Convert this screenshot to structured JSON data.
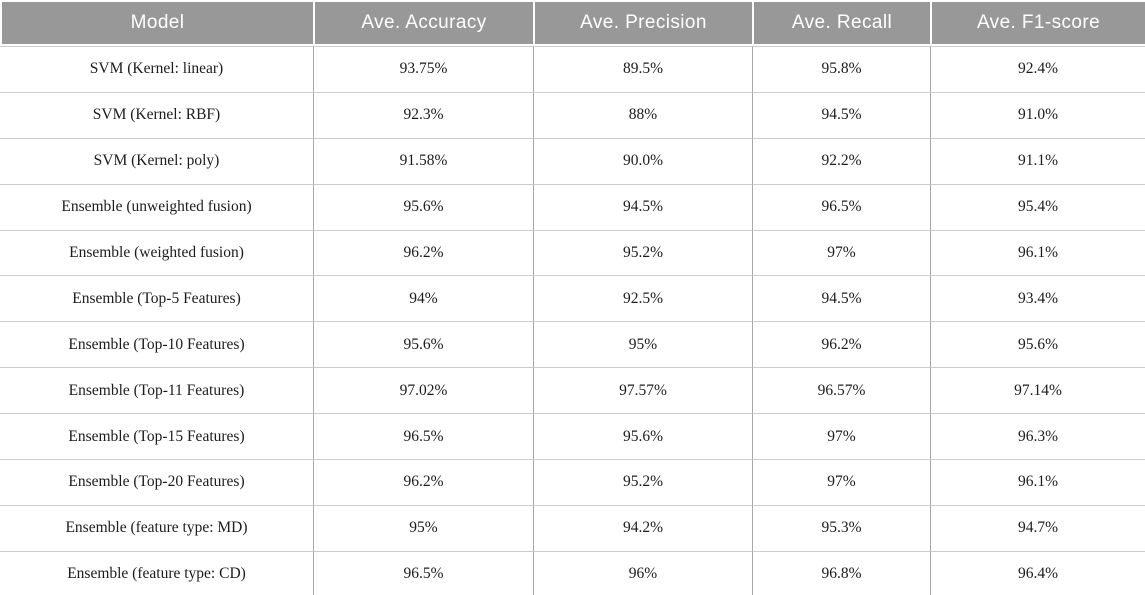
{
  "table": {
    "columns": [
      "Model",
      "Ave. Accuracy",
      "Ave. Precision",
      "Ave. Recall",
      "Ave. F1-score"
    ],
    "rows": [
      [
        "SVM (Kernel: linear)",
        "93.75%",
        "89.5%",
        "95.8%",
        "92.4%"
      ],
      [
        "SVM (Kernel: RBF)",
        "92.3%",
        "88%",
        "94.5%",
        "91.0%"
      ],
      [
        "SVM (Kernel: poly)",
        "91.58%",
        "90.0%",
        "92.2%",
        "91.1%"
      ],
      [
        "Ensemble (unweighted fusion)",
        "95.6%",
        "94.5%",
        "96.5%",
        "95.4%"
      ],
      [
        "Ensemble (weighted fusion)",
        "96.2%",
        "95.2%",
        "97%",
        "96.1%"
      ],
      [
        "Ensemble (Top-5 Features)",
        "94%",
        "92.5%",
        "94.5%",
        "93.4%"
      ],
      [
        "Ensemble (Top-10 Features)",
        "95.6%",
        "95%",
        "96.2%",
        "95.6%"
      ],
      [
        "Ensemble (Top-11 Features)",
        "97.02%",
        "97.57%",
        "96.57%",
        "97.14%"
      ],
      [
        "Ensemble (Top-15 Features)",
        "96.5%",
        "95.6%",
        "97%",
        "96.3%"
      ],
      [
        "Ensemble (Top-20 Features)",
        "96.2%",
        "95.2%",
        "97%",
        "96.1%"
      ],
      [
        "Ensemble (feature type: MD)",
        "95%",
        "94.2%",
        "95.3%",
        "94.7%"
      ],
      [
        "Ensemble (feature type: CD)",
        "96.5%",
        "96%",
        "96.8%",
        "96.4%"
      ]
    ]
  },
  "colors": {
    "header_bg": "#989898",
    "header_text": "#ffffff",
    "body_text": "#1c1c1c",
    "row_divider": "#cbcbcb",
    "column_divider": "#a8a8a8"
  },
  "chart_data": {
    "type": "table",
    "title": "",
    "columns": [
      "Model",
      "Ave. Accuracy",
      "Ave. Precision",
      "Ave. Recall",
      "Ave. F1-score"
    ],
    "rows": [
      {
        "model": "SVM (Kernel: linear)",
        "accuracy": 93.75,
        "precision": 89.5,
        "recall": 95.8,
        "f1_score": 92.4
      },
      {
        "model": "SVM (Kernel: RBF)",
        "accuracy": 92.3,
        "precision": 88,
        "recall": 94.5,
        "f1_score": 91.0
      },
      {
        "model": "SVM (Kernel: poly)",
        "accuracy": 91.58,
        "precision": 90.0,
        "recall": 92.2,
        "f1_score": 91.1
      },
      {
        "model": "Ensemble (unweighted fusion)",
        "accuracy": 95.6,
        "precision": 94.5,
        "recall": 96.5,
        "f1_score": 95.4
      },
      {
        "model": "Ensemble (weighted fusion)",
        "accuracy": 96.2,
        "precision": 95.2,
        "recall": 97,
        "f1_score": 96.1
      },
      {
        "model": "Ensemble (Top-5 Features)",
        "accuracy": 94,
        "precision": 92.5,
        "recall": 94.5,
        "f1_score": 93.4
      },
      {
        "model": "Ensemble (Top-10 Features)",
        "accuracy": 95.6,
        "precision": 95,
        "recall": 96.2,
        "f1_score": 95.6
      },
      {
        "model": "Ensemble (Top-11 Features)",
        "accuracy": 97.02,
        "precision": 97.57,
        "recall": 96.57,
        "f1_score": 97.14
      },
      {
        "model": "Ensemble (Top-15 Features)",
        "accuracy": 96.5,
        "precision": 95.6,
        "recall": 97,
        "f1_score": 96.3
      },
      {
        "model": "Ensemble (Top-20 Features)",
        "accuracy": 96.2,
        "precision": 95.2,
        "recall": 97,
        "f1_score": 96.1
      },
      {
        "model": "Ensemble (feature type: MD)",
        "accuracy": 95,
        "precision": 94.2,
        "recall": 95.3,
        "f1_score": 94.7
      },
      {
        "model": "Ensemble (feature type: CD)",
        "accuracy": 96.5,
        "precision": 96,
        "recall": 96.8,
        "f1_score": 96.4
      }
    ],
    "units": "percent"
  }
}
